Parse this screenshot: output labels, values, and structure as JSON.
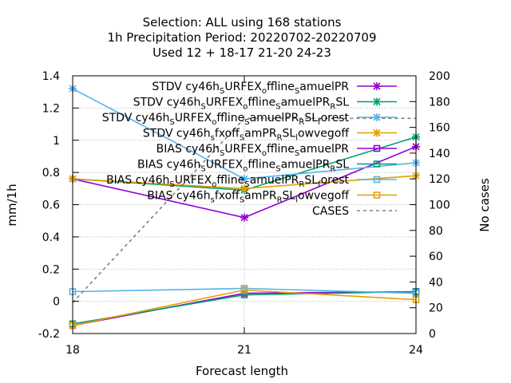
{
  "chart_data": {
    "type": "line",
    "title": [
      "Selection: ALL using   168 stations",
      "1h Precipitation   Period: 20220702-20220709",
      "Used  12 + 18-17 21-20 24-23"
    ],
    "xlabel": "Forecast length",
    "ylabel": "mm/1h",
    "y2label": "No cases",
    "x": [
      18,
      21,
      24
    ],
    "x_ticks": [
      "18",
      "21",
      "24"
    ],
    "xlim": [
      18,
      24
    ],
    "ylim": [
      -0.2,
      1.4
    ],
    "y_ticks": [
      "-0.2",
      "0",
      "0.2",
      "0.4",
      "0.6",
      "0.8",
      "1",
      "1.2",
      "1.4"
    ],
    "y2lim": [
      0,
      200
    ],
    "y2_ticks": [
      "0",
      "20",
      "40",
      "60",
      "80",
      "100",
      "120",
      "140",
      "160",
      "180",
      "200"
    ],
    "grid": true,
    "legend_position": "top-right",
    "series": [
      {
        "label": "STDV cy46h_SURFEX_offline_samuelPR",
        "color": "#9400d3",
        "marker": "x",
        "axis": "y",
        "values": [
          0.76,
          0.52,
          0.96
        ]
      },
      {
        "label": "STDV cy46h_SURFEX_offline_samuelPR_RSL",
        "color": "#009e73",
        "marker": "x",
        "axis": "y",
        "values": [
          0.76,
          0.69,
          1.02
        ]
      },
      {
        "label": "STDV cy46h_SURFEX_offline_samuelPR_RSL_forest",
        "color": "#56b4e9",
        "marker": "x",
        "axis": "y",
        "values": [
          1.32,
          0.76,
          0.86
        ]
      },
      {
        "label": "STDV cy46h_sfxoff_samPR_RSL_lowvegoff",
        "color": "#e69f00",
        "marker": "x",
        "axis": "y",
        "values": [
          0.76,
          0.7,
          0.78
        ]
      },
      {
        "label": "BIAS cy46h_SURFEX_offline_samuelPR",
        "color": "#9400d3",
        "marker": "square",
        "axis": "y",
        "values": [
          -0.15,
          0.05,
          0.06
        ]
      },
      {
        "label": "BIAS cy46h_SURFEX_offline_samuelPR_RSL",
        "color": "#009e73",
        "marker": "square",
        "axis": "y",
        "values": [
          -0.14,
          0.04,
          0.06
        ]
      },
      {
        "label": "BIAS cy46h_SURFEX_offline_samuelPR_RSL_forest",
        "color": "#56b4e9",
        "marker": "square",
        "axis": "y",
        "values": [
          0.06,
          0.08,
          0.05
        ]
      },
      {
        "label": "BIAS cy46h_sfxoff_samPR_RSL_lowvegoff",
        "color": "#e69f00",
        "marker": "square",
        "axis": "y",
        "values": [
          -0.15,
          0.07,
          0.01
        ]
      },
      {
        "label": "CASES",
        "color": "#808080",
        "marker": "none",
        "dash": true,
        "axis": "y2",
        "values": [
          24,
          167,
          167
        ]
      }
    ],
    "legend": [
      {
        "text": "STDV cy46h",
        "parts": [
          [
            "n",
            "STDV cy46h"
          ],
          [
            "s",
            "S"
          ],
          [
            "n",
            "URFEX"
          ],
          [
            "s",
            "o"
          ],
          [
            "n",
            "ffline"
          ],
          [
            "s",
            "S"
          ],
          [
            "n",
            "amuelPR"
          ]
        ]
      },
      {
        "text": "STDV cy46h",
        "parts": [
          [
            "n",
            "STDV cy46h"
          ],
          [
            "s",
            "S"
          ],
          [
            "n",
            "URFEX"
          ],
          [
            "s",
            "o"
          ],
          [
            "n",
            "ffline"
          ],
          [
            "s",
            "S"
          ],
          [
            "n",
            "amuelPR"
          ],
          [
            "s",
            "R"
          ],
          [
            "n",
            "SL"
          ]
        ]
      },
      {
        "text": "STDV cy46h",
        "parts": [
          [
            "n",
            "STDV cy46h"
          ],
          [
            "s",
            "S"
          ],
          [
            "n",
            "URFEX"
          ],
          [
            "s",
            "o"
          ],
          [
            "n",
            "ffline"
          ],
          [
            "s",
            "S"
          ],
          [
            "n",
            "amuelPR"
          ],
          [
            "s",
            "R"
          ],
          [
            "n",
            "SL"
          ],
          [
            "s",
            "f"
          ],
          [
            "n",
            "orest"
          ]
        ]
      },
      {
        "text": "STDV cy46h",
        "parts": [
          [
            "n",
            "STDV cy46h"
          ],
          [
            "s",
            "s"
          ],
          [
            "n",
            "fxoff"
          ],
          [
            "s",
            "S"
          ],
          [
            "n",
            "amPR"
          ],
          [
            "s",
            "R"
          ],
          [
            "n",
            "SL"
          ],
          [
            "s",
            "l"
          ],
          [
            "n",
            "owvegoff"
          ]
        ]
      },
      {
        "text": "BIAS cy46h",
        "parts": [
          [
            "n",
            "BIAS cy46h"
          ],
          [
            "s",
            "S"
          ],
          [
            "n",
            "URFEX"
          ],
          [
            "s",
            "o"
          ],
          [
            "n",
            "ffline"
          ],
          [
            "s",
            "S"
          ],
          [
            "n",
            "amuelPR"
          ]
        ]
      },
      {
        "text": "BIAS cy46h",
        "parts": [
          [
            "n",
            "BIAS cy46h"
          ],
          [
            "s",
            "S"
          ],
          [
            "n",
            "URFEX"
          ],
          [
            "s",
            "o"
          ],
          [
            "n",
            "ffline"
          ],
          [
            "s",
            "S"
          ],
          [
            "n",
            "amuelPR"
          ],
          [
            "s",
            "R"
          ],
          [
            "n",
            "SL"
          ]
        ]
      },
      {
        "text": "BIAS cy46h",
        "parts": [
          [
            "n",
            "BIAS cy46h"
          ],
          [
            "s",
            "S"
          ],
          [
            "n",
            "URFEX"
          ],
          [
            "s",
            "o"
          ],
          [
            "n",
            "ffline"
          ],
          [
            "s",
            "S"
          ],
          [
            "n",
            "amuelPR"
          ],
          [
            "s",
            "R"
          ],
          [
            "n",
            "SL"
          ],
          [
            "s",
            "f"
          ],
          [
            "n",
            "orest"
          ]
        ]
      },
      {
        "text": "BIAS cy46h",
        "parts": [
          [
            "n",
            "BIAS cy46h"
          ],
          [
            "s",
            "s"
          ],
          [
            "n",
            "fxoff"
          ],
          [
            "s",
            "S"
          ],
          [
            "n",
            "amPR"
          ],
          [
            "s",
            "R"
          ],
          [
            "n",
            "SL"
          ],
          [
            "s",
            "l"
          ],
          [
            "n",
            "owvegoff"
          ]
        ]
      },
      {
        "text": "CASES",
        "parts": [
          [
            "n",
            "CASES"
          ]
        ]
      }
    ]
  }
}
